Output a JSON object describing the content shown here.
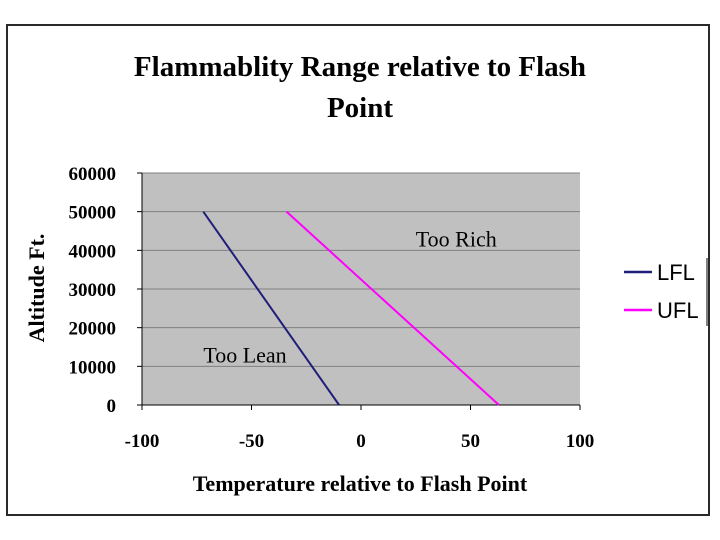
{
  "chart_data": {
    "type": "line",
    "title_lines": [
      "Flammablity Range  relative to Flash",
      "Point"
    ],
    "xlabel": "Temperature relative to Flash Point",
    "ylabel": "Altitude Ft.",
    "xlim": [
      -100,
      100
    ],
    "ylim": [
      0,
      60000
    ],
    "x_ticks": [
      -100,
      -50,
      0,
      50,
      100
    ],
    "y_ticks": [
      0,
      10000,
      20000,
      30000,
      40000,
      50000,
      60000
    ],
    "grid": "horizontal",
    "legend_position": "right",
    "series": [
      {
        "name": "LFL",
        "color": "#1f1f7a",
        "points": [
          [
            -72,
            50000
          ],
          [
            -10,
            0
          ]
        ]
      },
      {
        "name": "UFL",
        "color": "#ff00ff",
        "points": [
          [
            -34,
            50000
          ],
          [
            63,
            0
          ]
        ]
      }
    ],
    "annotations": [
      {
        "text": "Too Rich",
        "x": 25,
        "y": 41000
      },
      {
        "text": "Too Lean",
        "x": -72,
        "y": 11000
      }
    ],
    "colors": {
      "plot_background": "#c0c0c0",
      "gridline": "#808080"
    }
  }
}
